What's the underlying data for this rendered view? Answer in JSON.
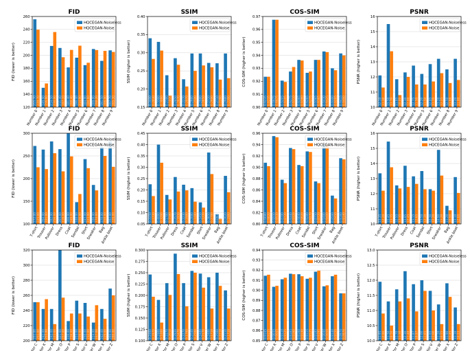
{
  "colors": {
    "noiseless": "#1f77b4",
    "noise": "#ff7f0e"
  },
  "legend": {
    "noiseless": "HQCEGAN-Noiseless",
    "noise": "HQCEGAN-Noise"
  },
  "chart_data": [
    {
      "type": "bar",
      "title": "FID",
      "ylabel": "FID (lower is better)",
      "ylim": [
        120,
        260
      ],
      "yticks": [
        120,
        140,
        160,
        180,
        200,
        220,
        240,
        260
      ],
      "categories": [
        "Number 0",
        "Number 1",
        "Number 2",
        "Number 3",
        "Number 4",
        "Number 5",
        "Number 6",
        "Number 7",
        "Number 8",
        "Number 9"
      ],
      "series": [
        {
          "name": "HQCEGAN-Noiseless",
          "values": [
            255.7,
            149.9,
            214.5,
            211.4,
            181.4,
            196.4,
            184.9,
            209.8,
            191.5,
            207.7
          ]
        },
        {
          "name": "HQCEGAN-Noise",
          "values": [
            239.7,
            156.6,
            236.0,
            197.1,
            208.4,
            214.9,
            188.6,
            208.2,
            206.9,
            205.3
          ]
        }
      ]
    },
    {
      "type": "bar",
      "title": "SSIM",
      "ylabel": "SSIM (higher is better)",
      "ylim": [
        0.15,
        0.4
      ],
      "yticks": [
        0.15,
        0.2,
        0.25,
        0.3,
        0.35,
        0.4
      ],
      "categories": [
        "Number 0",
        "Number 1",
        "Number 2",
        "Number 3",
        "Number 4",
        "Number 5",
        "Number 6",
        "Number 7",
        "Number 8",
        "Number 9"
      ],
      "series": [
        {
          "name": "HQCEGAN-Noiseless",
          "values": [
            0.34,
            0.33,
            0.238,
            0.285,
            0.227,
            0.298,
            0.298,
            0.272,
            0.271,
            0.298
          ]
        },
        {
          "name": "HQCEGAN-Noise",
          "values": [
            0.283,
            0.306,
            0.182,
            0.267,
            0.207,
            0.25,
            0.265,
            0.26,
            0.226,
            0.23
          ]
        }
      ]
    },
    {
      "type": "bar",
      "title": "COS-SIM",
      "ylabel": "COS-SIM (higher is better)",
      "ylim": [
        0.9,
        0.97
      ],
      "yticks": [
        0.9,
        0.91,
        0.92,
        0.93,
        0.94,
        0.95,
        0.96,
        0.97
      ],
      "categories": [
        "Number 0",
        "Number 1",
        "Number 2",
        "Number 3",
        "Number 4",
        "Number 5",
        "Number 6",
        "Number 7",
        "Number 8",
        "Number 9"
      ],
      "series": [
        {
          "name": "HQCEGAN-Noiseless",
          "values": [
            0.9235,
            0.9675,
            0.9205,
            0.9275,
            0.9365,
            0.9265,
            0.9365,
            0.943,
            0.93,
            0.9415
          ]
        },
        {
          "name": "HQCEGAN-Noise",
          "values": [
            0.9235,
            0.9675,
            0.9195,
            0.931,
            0.936,
            0.9275,
            0.9365,
            0.9425,
            0.9285,
            0.94
          ]
        }
      ]
    },
    {
      "type": "bar",
      "title": "PSNR",
      "ylabel": "PSNR (higher is better)",
      "ylim": [
        10,
        16
      ],
      "yticks": [
        10,
        11,
        12,
        13,
        14,
        15,
        16
      ],
      "categories": [
        "Number 0",
        "Number 1",
        "Number 2",
        "Number 3",
        "Number 4",
        "Number 5",
        "Number 6",
        "Number 7",
        "Number 8",
        "Number 9"
      ],
      "series": [
        {
          "name": "HQCEGAN-Noiseless",
          "values": [
            12.1,
            15.5,
            11.85,
            12.3,
            12.75,
            12.2,
            12.85,
            13.2,
            12.5,
            13.2
          ]
        },
        {
          "name": "HQCEGAN-Noise",
          "values": [
            11.3,
            13.7,
            10.8,
            12.0,
            11.5,
            11.5,
            11.7,
            12.25,
            11.6,
            11.8
          ]
        }
      ]
    },
    {
      "type": "bar",
      "title": "FID",
      "ylabel": "FID (lower is better)",
      "ylim": [
        100,
        300
      ],
      "yticks": [
        100,
        150,
        200,
        250,
        300
      ],
      "categories": [
        "T-shirt",
        "Trouser",
        "Pullover",
        "Dress",
        "Coat",
        "Sandal",
        "Shirt",
        "Sneaker",
        "Bag",
        "Ankle boot"
      ],
      "series": [
        {
          "name": "HQCEGAN-Noiseless",
          "values": [
            272.0,
            264.0,
            282.0,
            265.0,
            306.0,
            148.0,
            243.0,
            186.0,
            270.0,
            282.0
          ]
        },
        {
          "name": "HQCEGAN-Noise",
          "values": [
            225.0,
            221.0,
            256.0,
            216.0,
            249.0,
            166.0,
            223.0,
            174.0,
            250.0,
            226.0
          ]
        }
      ]
    },
    {
      "type": "bar",
      "title": "SSIM",
      "ylabel": "SSIM (higher is better)",
      "ylim": [
        0.05,
        0.45
      ],
      "yticks": [
        0.05,
        0.1,
        0.15,
        0.2,
        0.25,
        0.3,
        0.35,
        0.4,
        0.45
      ],
      "categories": [
        "T-shirt",
        "Trouser",
        "Pullover",
        "Dress",
        "Coat",
        "Sandal",
        "Shirt",
        "Sneaker",
        "Bag",
        "Ankle boot"
      ],
      "series": [
        {
          "name": "HQCEGAN-Noiseless",
          "values": [
            0.225,
            0.4,
            0.178,
            0.257,
            0.223,
            0.208,
            0.145,
            0.365,
            0.093,
            0.262
          ]
        },
        {
          "name": "HQCEGAN-Noise",
          "values": [
            0.173,
            0.32,
            0.158,
            0.193,
            0.198,
            0.148,
            0.122,
            0.27,
            0.073,
            0.19
          ]
        }
      ]
    },
    {
      "type": "bar",
      "title": "COS-SIM",
      "ylabel": "COS-SIM (higher is better)",
      "ylim": [
        0.8,
        0.96
      ],
      "yticks": [
        0.8,
        0.82,
        0.84,
        0.86,
        0.88,
        0.9,
        0.92,
        0.94,
        0.96
      ],
      "categories": [
        "T-shirt",
        "Trouser",
        "Pullover",
        "Dress",
        "Coat",
        "Sandal",
        "Shirt",
        "Sneaker",
        "Bag",
        "Ankle boot"
      ],
      "series": [
        {
          "name": "HQCEGAN-Noiseless",
          "values": [
            0.908,
            0.955,
            0.878,
            0.934,
            0.904,
            0.928,
            0.875,
            0.94,
            0.85,
            0.916
          ]
        },
        {
          "name": "HQCEGAN-Noise",
          "values": [
            0.902,
            0.953,
            0.872,
            0.932,
            0.902,
            0.927,
            0.872,
            0.94,
            0.845,
            0.914
          ]
        }
      ]
    },
    {
      "type": "bar",
      "title": "PSNR",
      "ylabel": "PSNR (higher is better)",
      "ylim": [
        10,
        16
      ],
      "yticks": [
        10,
        11,
        12,
        13,
        14,
        15,
        16
      ],
      "categories": [
        "T-shirt",
        "Trouser",
        "Pullover",
        "Dress",
        "Coat",
        "Sandal",
        "Shirt",
        "Sneaker",
        "Bag",
        "Ankle boot"
      ],
      "series": [
        {
          "name": "HQCEGAN-Noiseless",
          "values": [
            13.35,
            15.45,
            12.55,
            13.85,
            13.15,
            13.5,
            12.3,
            14.9,
            11.2,
            13.1
          ]
        },
        {
          "name": "HQCEGAN-Noise",
          "values": [
            12.2,
            13.75,
            12.35,
            12.45,
            12.65,
            12.3,
            12.2,
            13.2,
            10.9,
            12.05
          ]
        }
      ]
    },
    {
      "type": "bar",
      "title": "FID",
      "ylabel": "FID (lower is better)",
      "ylim": [
        200,
        320
      ],
      "yticks": [
        200,
        220,
        240,
        260,
        280,
        300,
        320
      ],
      "categories": [
        "Letter C",
        "Letter K",
        "Letter M",
        "Letter O",
        "Letter P",
        "Letter S",
        "Letter V",
        "Letter W",
        "Letter X",
        "Letter Z"
      ],
      "series": [
        {
          "name": "HQCEGAN-Noiseless",
          "values": [
            251.0,
            242.0,
            242.0,
            321.0,
            226.0,
            253.0,
            250.0,
            224.0,
            242.0,
            269.0
          ]
        },
        {
          "name": "HQCEGAN-Noise",
          "values": [
            251.0,
            255.0,
            222.0,
            257.0,
            236.0,
            236.0,
            232.0,
            247.0,
            229.0,
            260.0
          ]
        }
      ]
    },
    {
      "type": "bar",
      "title": "SSIM",
      "ylabel": "SSIM (higher is better)",
      "ylim": [
        0.1,
        0.3
      ],
      "yticks": [
        0.1,
        0.125,
        0.15,
        0.175,
        0.2,
        0.225,
        0.25,
        0.275,
        0.3
      ],
      "categories": [
        "Letter C",
        "Letter K",
        "Letter M",
        "Letter O",
        "Letter P",
        "Letter S",
        "Letter V",
        "Letter W",
        "Letter X",
        "Letter Z"
      ],
      "series": [
        {
          "name": "HQCEGAN-Noiseless",
          "values": [
            0.246,
            0.19,
            0.227,
            0.292,
            0.227,
            0.254,
            0.248,
            0.24,
            0.25,
            0.211
          ]
        },
        {
          "name": "HQCEGAN-Noise",
          "values": [
            0.197,
            0.14,
            0.201,
            0.247,
            0.176,
            0.25,
            0.217,
            0.171,
            0.221,
            0.171
          ]
        }
      ]
    },
    {
      "type": "bar",
      "title": "COS-SIM",
      "ylabel": "COS-SIM (higher is better)",
      "ylim": [
        0.85,
        0.94
      ],
      "yticks": [
        0.85,
        0.86,
        0.87,
        0.88,
        0.89,
        0.9,
        0.91,
        0.92,
        0.93,
        0.94
      ],
      "categories": [
        "Letter C",
        "Letter K",
        "Letter M",
        "Letter O",
        "Letter P",
        "Letter S",
        "Letter V",
        "Letter W",
        "Letter X",
        "Letter Z"
      ],
      "series": [
        {
          "name": "HQCEGAN-Noiseless",
          "values": [
            0.9145,
            0.9035,
            0.911,
            0.9165,
            0.916,
            0.9115,
            0.9185,
            0.904,
            0.914,
            0.897
          ]
        },
        {
          "name": "HQCEGAN-Noise",
          "values": [
            0.9155,
            0.9045,
            0.9125,
            0.916,
            0.914,
            0.9125,
            0.9195,
            0.905,
            0.9155,
            0.897
          ]
        }
      ]
    },
    {
      "type": "bar",
      "title": "PSNR",
      "ylabel": "PSNR (higher is better)",
      "ylim": [
        10.0,
        13.0
      ],
      "yticks": [
        10.0,
        10.5,
        11.0,
        11.5,
        12.0,
        12.5,
        13.0
      ],
      "categories": [
        "Letter C",
        "Letter K",
        "Letter M",
        "Letter O",
        "Letter P",
        "Letter S",
        "Letter V",
        "Letter W",
        "Letter X",
        "Letter Z"
      ],
      "series": [
        {
          "name": "HQCEGAN-Noiseless",
          "values": [
            11.95,
            11.3,
            11.7,
            12.3,
            11.87,
            12.0,
            11.65,
            11.2,
            11.9,
            11.1
          ]
        },
        {
          "name": "HQCEGAN-Noise",
          "values": [
            10.9,
            10.5,
            11.3,
            11.4,
            10.97,
            11.65,
            11.0,
            10.55,
            11.45,
            10.55
          ]
        }
      ]
    }
  ]
}
